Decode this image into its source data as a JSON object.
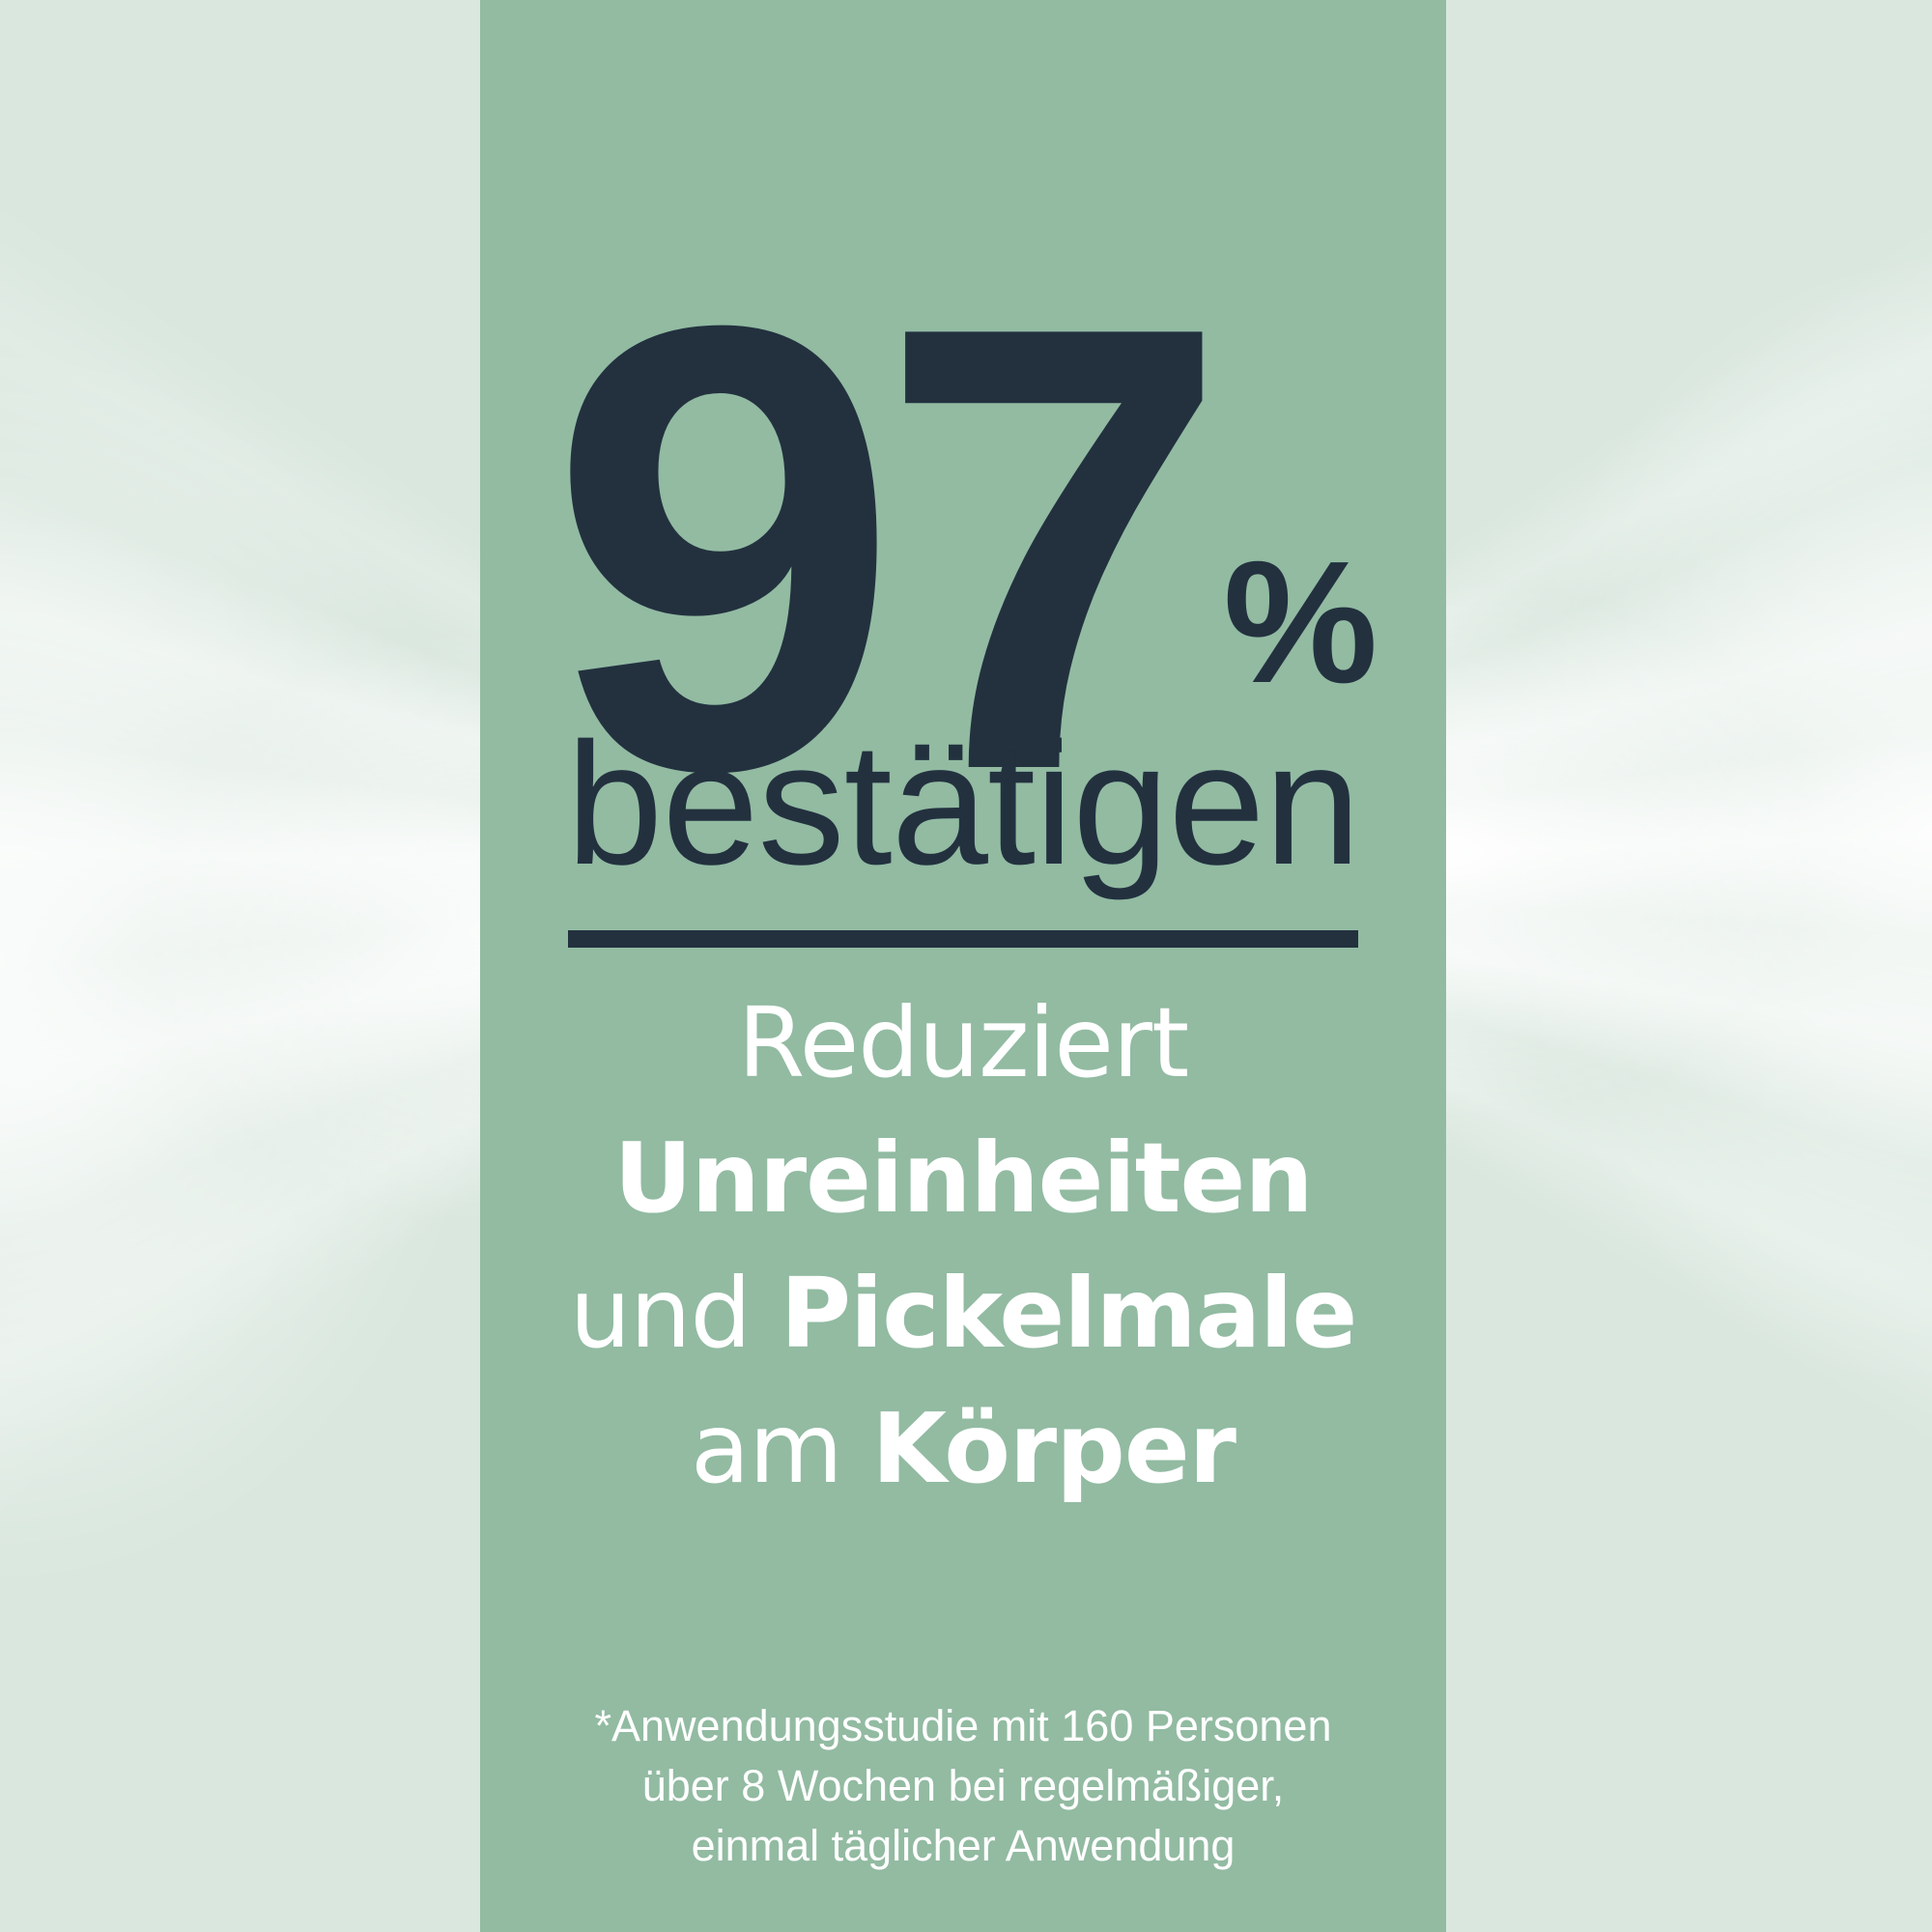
{
  "colors": {
    "background": "#d9e7de",
    "band": "#92bba2",
    "ink": "#23313f",
    "text_light": "#ffffff"
  },
  "stat": {
    "number": "97",
    "percent_sign": "%",
    "word": "bestätigen"
  },
  "claim": {
    "line1": {
      "regular": "Reduziert"
    },
    "line2": {
      "bold": "Unreinheiten"
    },
    "line3": {
      "regular": "und",
      "bold": "Pickelmale"
    },
    "line4": {
      "regular": "am",
      "bold": "Körper"
    }
  },
  "footnote": {
    "line1": "*Anwendungsstudie mit 160 Personen",
    "line2": "über 8 Wochen bei regelmäßiger,",
    "line3": "einmal täglicher Anwendung"
  }
}
